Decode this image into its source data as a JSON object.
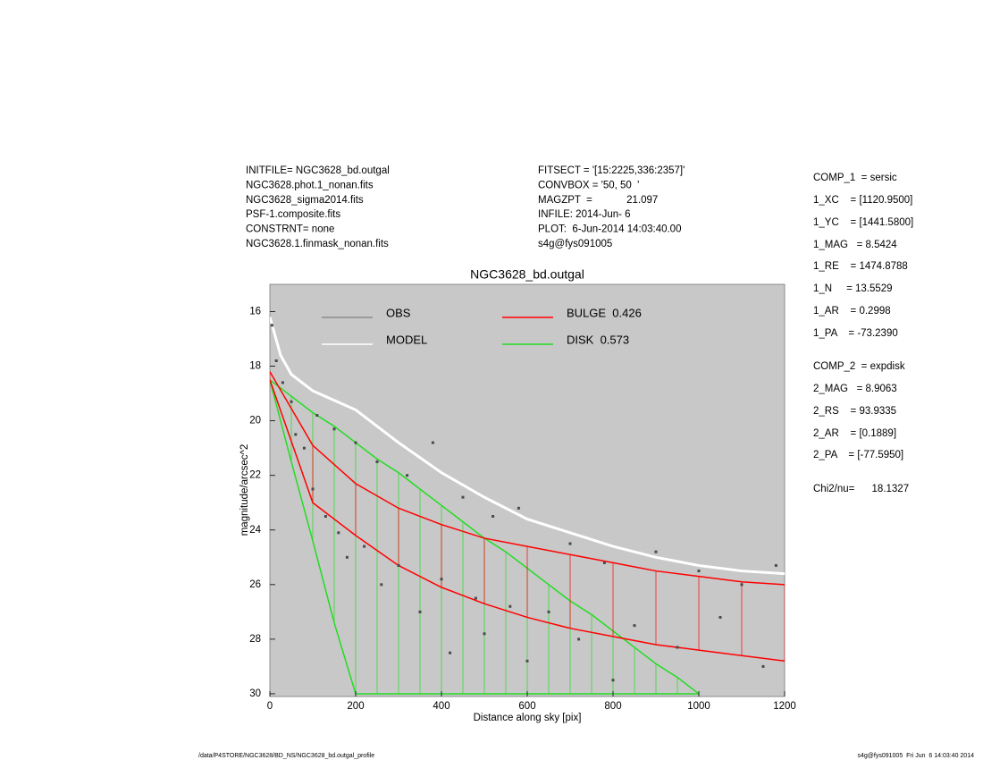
{
  "header_left": [
    "INITFILE= NGC3628_bd.outgal",
    "NGC3628.phot.1_nonan.fits",
    "NGC3628_sigma2014.fits",
    "PSF-1.composite.fits",
    "CONSTRNT= none",
    "NGC3628.1.finmask_nonan.fits"
  ],
  "header_mid": [
    "FITSECT = '[15:2225,336:2357]'",
    "CONVBOX = '50, 50  '",
    "MAGZPT  =            21.097",
    "INFILE: 2014-Jun- 6",
    "PLOT:  6-Jun-2014 14:03:40.00",
    "s4g@fys091005"
  ],
  "parameters": [
    "COMP_1  = sersic",
    "1_XC    = [1120.9500]",
    "1_YC    = [1441.5800]",
    "1_MAG   = 8.5424",
    "1_RE    = 1474.8788",
    "1_N     = 13.5529",
    "1_AR    = 0.2998",
    "1_PA    = -73.2390",
    "COMP_2  = expdisk",
    "2_MAG   = 8.9063",
    "2_RS    = 93.9335",
    "2_AR    = [0.1889]",
    "2_PA    = [-77.5950]",
    "Chi2/nu=      18.1327"
  ],
  "footer_left": "/data/P4STORE/NGC3628/BD_NS/NGC3628_bd.outgal_profile",
  "footer_right": "s4g@fys091005  Fri Jun  6 14:03:40 2014",
  "chart_data": {
    "type": "scatter",
    "title": "NGC3628_bd.outgal",
    "xlabel": "Distance along sky [pix]",
    "ylabel": "magnitude/arcsec^2",
    "xlim": [
      0,
      1200
    ],
    "ylim": [
      30.1,
      15
    ],
    "xticks": [
      0,
      200,
      400,
      600,
      800,
      1000,
      1200
    ],
    "yticks": [
      16,
      18,
      20,
      22,
      24,
      26,
      28,
      30
    ],
    "background": "#c8c8c8",
    "series": [
      {
        "name": "OBS",
        "color": "#4a4a4a",
        "legend_color": "#8c8c8c",
        "style": "points",
        "x": [
          5,
          15,
          30,
          50,
          60,
          80,
          100,
          110,
          130,
          150,
          160,
          180,
          200,
          220,
          250,
          260,
          300,
          320,
          350,
          380,
          400,
          420,
          450,
          480,
          500,
          520,
          560,
          580,
          600,
          650,
          700,
          720,
          780,
          800,
          850,
          900,
          950,
          1000,
          1050,
          1100,
          1150,
          1180
        ],
        "values": [
          16.5,
          17.8,
          18.6,
          19.3,
          20.5,
          21.0,
          22.5,
          19.8,
          23.5,
          20.3,
          24.1,
          25.0,
          20.8,
          24.6,
          21.5,
          26.0,
          25.3,
          22.0,
          27.0,
          20.8,
          25.8,
          28.5,
          22.8,
          26.5,
          27.8,
          23.5,
          26.8,
          23.2,
          28.8,
          27.0,
          24.5,
          28.0,
          25.2,
          29.5,
          27.5,
          24.8,
          28.3,
          25.5,
          27.2,
          26.0,
          29.0,
          25.3
        ]
      },
      {
        "name": "MODEL",
        "color": "#ffffff",
        "legend_color": "#ffffff",
        "style": "line",
        "x": [
          0,
          25,
          50,
          100,
          200,
          300,
          400,
          500,
          600,
          700,
          800,
          900,
          1000,
          1100,
          1200
        ],
        "values": [
          16.2,
          17.6,
          18.3,
          18.9,
          19.6,
          20.8,
          21.9,
          22.8,
          23.6,
          24.1,
          24.6,
          25.0,
          25.3,
          25.5,
          25.6
        ]
      },
      {
        "name": "BULGE  0.426",
        "color": "#ff0000",
        "legend_color": "#ff0000",
        "style": "band",
        "x": [
          0,
          100,
          200,
          300,
          400,
          500,
          600,
          700,
          800,
          900,
          1000,
          1100,
          1200
        ],
        "values": [
          18.2,
          20.9,
          22.3,
          23.2,
          23.8,
          24.3,
          24.6,
          24.9,
          25.2,
          25.5,
          25.7,
          25.9,
          26.0
        ],
        "low": [
          18.5,
          23.0,
          24.2,
          25.3,
          26.1,
          26.7,
          27.2,
          27.6,
          27.9,
          28.2,
          28.4,
          28.6,
          28.8
        ]
      },
      {
        "name": "DISK  0.573",
        "color": "#22dd22",
        "legend_color": "#22dd22",
        "style": "band",
        "x": [
          0,
          50,
          100,
          150,
          200,
          250,
          300,
          350,
          400,
          450,
          500,
          550,
          600,
          650,
          700,
          750,
          800,
          850,
          900,
          950,
          1000
        ],
        "values": [
          18.5,
          19.1,
          19.7,
          20.2,
          20.8,
          21.4,
          21.9,
          22.5,
          23.1,
          23.7,
          24.3,
          24.8,
          25.4,
          26.0,
          26.6,
          27.1,
          27.7,
          28.3,
          28.9,
          29.4,
          30.0
        ],
        "low": [
          18.5,
          21.5,
          24.4,
          27.4,
          30.0,
          30.0,
          30.0,
          30.0,
          30.0,
          30.0,
          30.0,
          30.0,
          30.0,
          30.0,
          30.0,
          30.0,
          30.0,
          30.0,
          30.0,
          30.0,
          30.0
        ]
      }
    ]
  }
}
